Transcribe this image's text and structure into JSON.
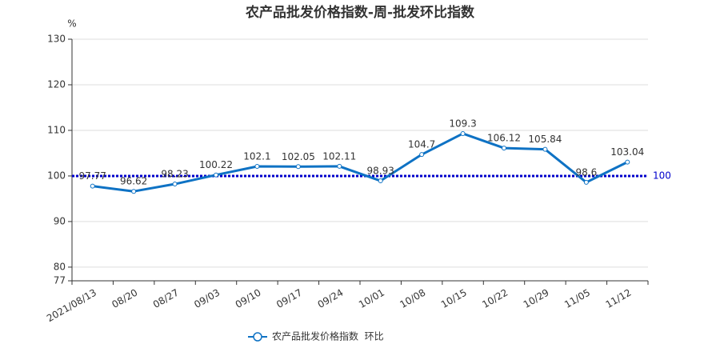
{
  "chart_data": {
    "type": "line",
    "title": "农产品批发价格指数-周-批发环比指数",
    "y_unit": "%",
    "categories": [
      "2021/08/13",
      "08/20",
      "08/27",
      "09/03",
      "09/10",
      "09/17",
      "09/24",
      "10/01",
      "10/08",
      "10/15",
      "10/22",
      "10/29",
      "11/05",
      "11/12"
    ],
    "series": [
      {
        "name": "农产品批发价格指数  环比",
        "color": "#0e72c4",
        "values": [
          97.77,
          96.62,
          98.23,
          100.22,
          102.1,
          102.05,
          102.11,
          98.93,
          104.7,
          109.3,
          106.12,
          105.84,
          98.6,
          103.04
        ]
      }
    ],
    "ylim": [
      77,
      130
    ],
    "yticks": [
      77,
      80,
      90,
      100,
      110,
      120,
      130
    ],
    "grid": true,
    "markline": 100,
    "markline_color": "#0000cc",
    "legend": "bottom"
  }
}
